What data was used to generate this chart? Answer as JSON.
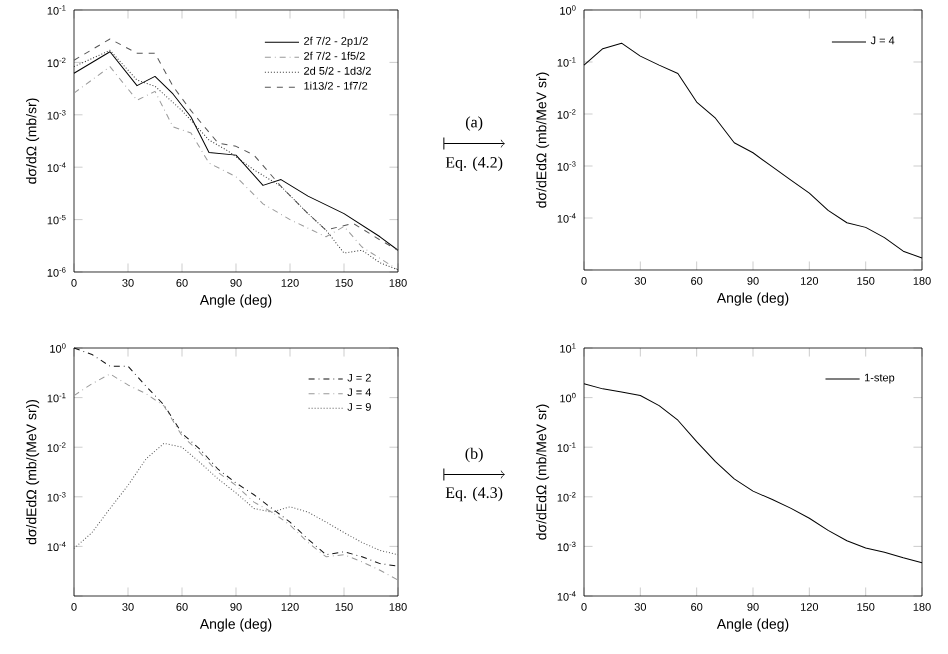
{
  "chart_data": [
    {
      "type": "line",
      "xlabel": "Angle (deg)",
      "ylabel": "dσ/dΩ (mb/sr)",
      "log": "y",
      "legend": "top right",
      "marker": "none",
      "xlim": [
        0,
        180
      ],
      "xticks": [
        0,
        30,
        60,
        90,
        120,
        150,
        180
      ],
      "ylim": [
        1e-06,
        0.1
      ],
      "yticks": [
        {
          "value": 0.1,
          "label": "10$^{-1}$"
        },
        {
          "value": 0.01,
          "label": "10$^{-2}$"
        },
        {
          "value": 0.001,
          "label": "10$^{-3}$"
        },
        {
          "value": 0.0001,
          "label": "10$^{-4}$"
        },
        {
          "value": 1e-05,
          "label": "10$^{-5}$"
        },
        {
          "value": 1e-06,
          "label": "10$^{-6}$"
        }
      ],
      "annotations": [
        "(a)",
        "Eq. (4.2)"
      ],
      "series": [
        {
          "name": "2f 7/2 - 2p1/2",
          "color": "#000000",
          "line_style": "solid",
          "x": [
            0,
            20,
            35,
            45,
            55,
            65,
            75,
            90,
            105,
            115,
            130,
            150,
            170,
            180
          ],
          "values": [
            0.0062,
            0.016,
            0.0036,
            0.0054,
            0.0025,
            0.00091,
            0.00019,
            0.00017,
            4.5e-05,
            5.8e-05,
            2.8e-05,
            1.3e-05,
            4.7e-06,
            2.6e-06
          ]
        },
        {
          "name": "2f 7/2 - 1f5/2",
          "color": "#999999",
          "line_style": "dashdot",
          "x": [
            0,
            20,
            35,
            45,
            55,
            65,
            75,
            90,
            105,
            120,
            140,
            150,
            160,
            180
          ],
          "values": [
            0.0026,
            0.0083,
            0.0019,
            0.0028,
            0.00059,
            0.00045,
            0.00012,
            6.6e-05,
            2e-05,
            1e-05,
            4.7e-06,
            7.4e-06,
            3e-06,
            1.1e-06
          ]
        },
        {
          "name": "2d 5/2 - 1d3/2",
          "color": "#333333",
          "line_style": "dotted",
          "x": [
            0,
            20,
            35,
            45,
            60,
            75,
            85,
            100,
            115,
            130,
            140,
            150,
            160,
            170,
            180
          ],
          "values": [
            0.0083,
            0.017,
            0.0046,
            0.0035,
            0.0012,
            0.00033,
            0.00021,
            8.9e-05,
            4.3e-05,
            1.3e-05,
            6.3e-06,
            2.3e-06,
            2.6e-06,
            1.5e-06,
            1.1e-06
          ]
        },
        {
          "name": "1i13/2 - 1f7/2",
          "color": "#555555",
          "line_style": "dashed",
          "x": [
            0,
            20,
            35,
            45,
            55,
            65,
            80,
            90,
            100,
            115,
            130,
            140,
            155,
            170,
            180
          ],
          "values": [
            0.011,
            0.028,
            0.015,
            0.015,
            0.0035,
            0.0012,
            0.00029,
            0.00025,
            0.00017,
            4.3e-05,
            1.3e-05,
            6.3e-06,
            8.5e-06,
            4.1e-06,
            2.6e-06
          ]
        }
      ]
    },
    {
      "type": "line",
      "xlabel": "Angle (deg)",
      "ylabel": "dσ/dEdΩ (mb/MeV sr)",
      "log": "y",
      "legend": "top right",
      "marker": "none",
      "xlim": [
        0,
        180
      ],
      "xticks": [
        0,
        30,
        60,
        90,
        120,
        150,
        180
      ],
      "ylim": [
        1e-05,
        1
      ],
      "yticks": [
        {
          "value": 1,
          "label": "10$^{0}$"
        },
        {
          "value": 0.1,
          "label": "10$^{-1}$"
        },
        {
          "value": 0.01,
          "label": "10$^{-2}$"
        },
        {
          "value": 0.001,
          "label": "10$^{-3}$"
        },
        {
          "value": 0.0001,
          "label": "10$^{-4}$"
        },
        {
          "value": 1e-05,
          "label": null
        }
      ],
      "x": [
        0,
        10,
        20,
        30,
        40,
        50,
        60,
        70,
        80,
        90,
        100,
        110,
        120,
        130,
        140,
        150,
        160,
        170,
        180
      ],
      "series": [
        {
          "name": "J = 4",
          "color": "#000000",
          "line_style": "solid",
          "values": [
            0.087,
            0.18,
            0.23,
            0.13,
            0.087,
            0.06,
            0.017,
            0.0083,
            0.0028,
            0.0018,
            0.00098,
            0.00054,
            0.0003,
            0.00014,
            8.1e-05,
            6.6e-05,
            4.2e-05,
            2.3e-05,
            1.7e-05
          ]
        }
      ]
    },
    {
      "type": "line",
      "xlabel": "Angle (deg)",
      "ylabel": "dσ/dEdΩ (mb/(MeV sr))",
      "log": "y",
      "legend": "top right",
      "marker": "none",
      "xlim": [
        0,
        180
      ],
      "xticks": [
        0,
        30,
        60,
        90,
        120,
        150,
        180
      ],
      "ylim": [
        1e-05,
        1
      ],
      "yticks": [
        {
          "value": 1,
          "label": "10$^{0}$"
        },
        {
          "value": 0.1,
          "label": "10$^{-1}$"
        },
        {
          "value": 0.01,
          "label": "10$^{-2}$"
        },
        {
          "value": 0.001,
          "label": "10$^{-3}$"
        },
        {
          "value": 0.0001,
          "label": "10$^{-4}$"
        },
        {
          "value": 1e-05,
          "label": null
        }
      ],
      "annotations": [
        "(b)",
        "Eq. (4.3)"
      ],
      "x": [
        0,
        10,
        20,
        30,
        40,
        50,
        60,
        70,
        80,
        90,
        100,
        110,
        120,
        130,
        140,
        150,
        160,
        170,
        180
      ],
      "series": [
        {
          "name": "J = 2",
          "color": "#111111",
          "line_style": "dashdot",
          "values": [
            1.0,
            0.74,
            0.43,
            0.43,
            0.17,
            0.071,
            0.019,
            0.0091,
            0.0036,
            0.0019,
            0.0011,
            0.00058,
            0.00031,
            0.00014,
            6.8e-05,
            7.8e-05,
            6.2e-05,
            4.5e-05,
            4e-05
          ]
        },
        {
          "name": "J = 4",
          "color": "#999999",
          "line_style": "dashdot",
          "values": [
            0.11,
            0.19,
            0.3,
            0.18,
            0.12,
            0.068,
            0.017,
            0.0078,
            0.0031,
            0.0017,
            0.00078,
            0.00049,
            0.00027,
            0.00012,
            6.2e-05,
            6.8e-05,
            4.9e-05,
            3.3e-05,
            2.1e-05
          ]
        },
        {
          "name": "J = 9",
          "color": "#555555",
          "line_style": "dotted",
          "values": [
            9.1e-05,
            0.00019,
            0.00058,
            0.0017,
            0.0058,
            0.012,
            0.01,
            0.0049,
            0.0023,
            0.0012,
            0.00058,
            0.00049,
            0.00063,
            0.00049,
            0.00031,
            0.00019,
            0.00012,
            8.3e-05,
            6.8e-05
          ]
        }
      ]
    },
    {
      "type": "line",
      "xlabel": "Angle (deg)",
      "ylabel": "dσ/dEdΩ (mb/MeV sr)",
      "log": "y",
      "legend": "top right",
      "marker": "none",
      "xlim": [
        0,
        180
      ],
      "xticks": [
        0,
        30,
        60,
        90,
        120,
        150,
        180
      ],
      "ylim": [
        0.0001,
        10
      ],
      "yticks": [
        {
          "value": 10,
          "label": "10$^{1}$"
        },
        {
          "value": 1,
          "label": "10$^{0}$"
        },
        {
          "value": 0.1,
          "label": "10$^{-1}$"
        },
        {
          "value": 0.01,
          "label": "10$^{-2}$"
        },
        {
          "value": 0.001,
          "label": "10$^{-3}$"
        },
        {
          "value": 0.0001,
          "label": "10$^{-4}$"
        }
      ],
      "x": [
        0,
        10,
        20,
        30,
        40,
        50,
        60,
        70,
        80,
        90,
        100,
        110,
        120,
        130,
        140,
        150,
        160,
        170,
        180
      ],
      "series": [
        {
          "name": "1-step",
          "color": "#000000",
          "line_style": "solid",
          "values": [
            1.9,
            1.5,
            1.3,
            1.1,
            0.69,
            0.35,
            0.13,
            0.051,
            0.023,
            0.013,
            0.0089,
            0.0059,
            0.0037,
            0.0021,
            0.0013,
            0.00093,
            0.00076,
            0.00059,
            0.00047
          ]
        }
      ]
    }
  ]
}
